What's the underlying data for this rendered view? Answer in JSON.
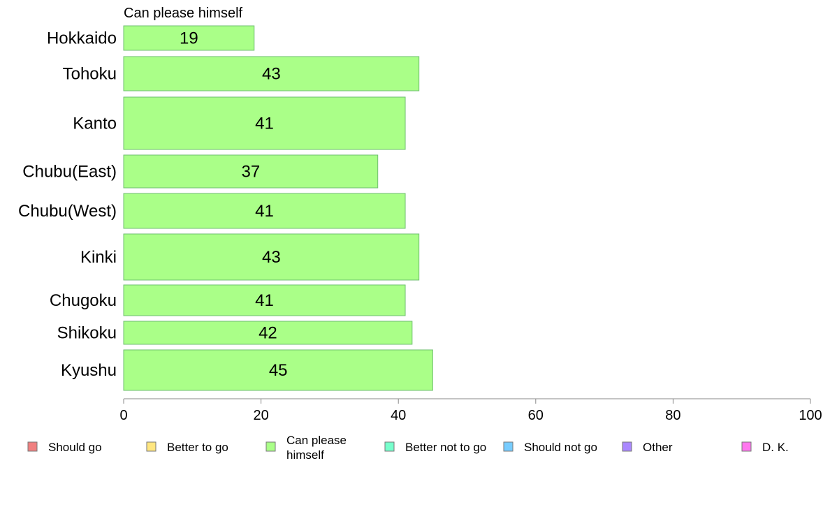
{
  "chart_data": {
    "type": "bar",
    "orientation": "horizontal",
    "subtitle": "Can please himself",
    "categories": [
      "Hokkaido",
      "Tohoku",
      "Kanto",
      "Chubu(East)",
      "Chubu(West)",
      "Kinki",
      "Chugoku",
      "Shikoku",
      "Kyushu"
    ],
    "series": [
      {
        "name": "Can please himself",
        "color": "#aaff88",
        "values": [
          19,
          43,
          41,
          37,
          41,
          43,
          41,
          42,
          45
        ]
      }
    ],
    "x_ticks": [
      "0",
      "20",
      "40",
      "60",
      "80",
      "100"
    ],
    "xlim": [
      0,
      100
    ],
    "grid": false,
    "legend_position": "bottom",
    "legend": [
      {
        "label": "Should go",
        "color": "#f08080"
      },
      {
        "label": "Better to go",
        "color": "#ffe680"
      },
      {
        "label": "Can please himself",
        "color": "#aaff88"
      },
      {
        "label": "Better not to go",
        "color": "#77ffcc"
      },
      {
        "label": "Should not go",
        "color": "#77ccff"
      },
      {
        "label": "Other",
        "color": "#aa88ff"
      },
      {
        "label": "D. K.",
        "color": "#ff77ee"
      }
    ]
  }
}
